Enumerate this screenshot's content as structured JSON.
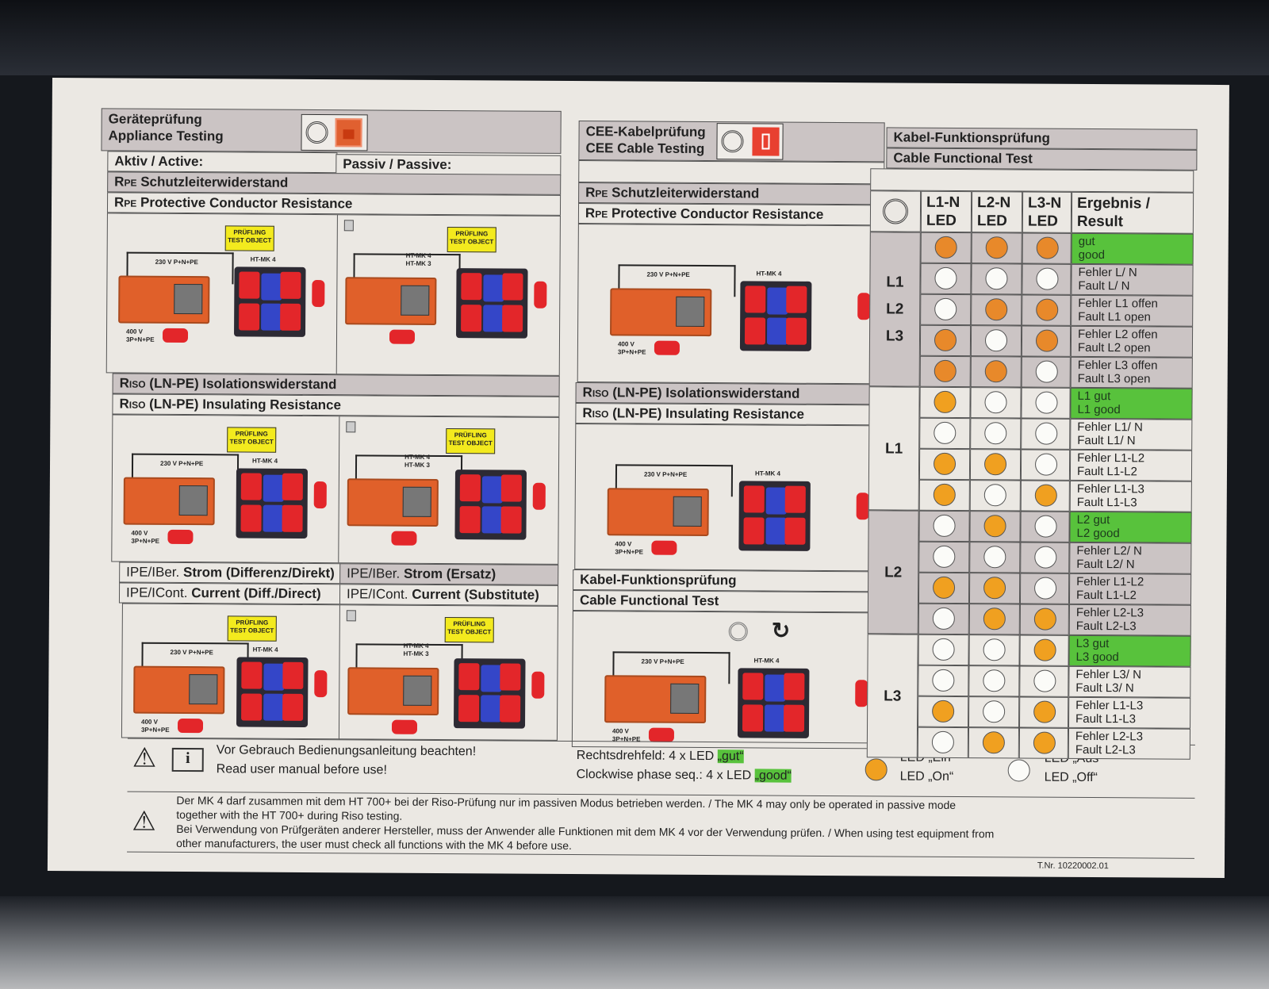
{
  "appliance": {
    "title_de": "Geräteprüfung",
    "title_en": "Appliance Testing",
    "active_label": "Aktiv / Active:",
    "passive_label": "Passiv / Passive:",
    "rpe_de": "Schutzleiterwiderstand",
    "rpe_en": "Protective Conductor Resistance",
    "rpe_prefix": "R",
    "rpe_sub": "PE",
    "riso_prefix": "R",
    "riso_sub": "ISO",
    "riso_de": "(LN-PE) Isolationswiderstand",
    "riso_en": "(LN-PE) Insulating Resistance",
    "ipe_de_active_prefix": "IPE/IBer.",
    "ipe_de_active": "Strom (Differenz/Direkt)",
    "ipe_en_active_prefix": "IPE/ICont.",
    "ipe_en_active": "Current (Diff./Direct)",
    "ipe_de_passive": "Strom (Ersatz)",
    "ipe_en_passive": "Current (Substitute)"
  },
  "cee": {
    "title_de": "CEE-Kabelprüfung",
    "title_en": "CEE Cable Testing",
    "rpe_de": "Schutzleiterwiderstand",
    "rpe_en": "Protective Conductor Resistance",
    "riso_de": "(LN-PE) Isolationswiderstand",
    "riso_en": "(LN-PE) Insulating Resistance",
    "cable_de": "Kabel-Funktionsprüfung",
    "cable_en": "Cable Functional Test"
  },
  "diagram_labels": {
    "supply_230": "230 V P+N+PE",
    "supply_400": "400 V",
    "supply_400b": "3P+N+PE",
    "mk4": "HT-MK 4",
    "mk4_mk3": "HT-MK 4\nHT-MK 3",
    "test_object_de": "PRÜFLING",
    "test_object_en": "TEST OBJECT"
  },
  "cable_test": {
    "title_de": "Kabel-Funktionsprüfung",
    "title_en": "Cable Functional Test",
    "headers": [
      "L1-N\nLED",
      "L2-N\nLED",
      "L3-N\nLED",
      "Ergebnis /\nResult"
    ],
    "groups": [
      {
        "label": "L1\n\nL2\n\nL3",
        "rows": 5,
        "shaded": true
      },
      {
        "label": "L1",
        "rows": 4,
        "shaded": false
      },
      {
        "label": "L2",
        "rows": 4,
        "shaded": true
      },
      {
        "label": "L3",
        "rows": 4,
        "shaded": false
      }
    ],
    "rows": [
      {
        "leds": [
          1,
          1,
          1
        ],
        "de": "gut",
        "en": "good",
        "good": true
      },
      {
        "leds": [
          0,
          0,
          0
        ],
        "de": "Fehler L/ N",
        "en": "Fault L/ N"
      },
      {
        "leds": [
          0,
          1,
          1
        ],
        "de": "Fehler L1 offen",
        "en": "Fault L1 open"
      },
      {
        "leds": [
          1,
          0,
          1
        ],
        "de": "Fehler L2 offen",
        "en": "Fault L2 open"
      },
      {
        "leds": [
          1,
          1,
          0
        ],
        "de": "Fehler L3 offen",
        "en": "Fault L3 open"
      },
      {
        "leds": [
          1,
          0,
          0
        ],
        "de": "L1 gut",
        "en": "L1 good",
        "good": true
      },
      {
        "leds": [
          0,
          0,
          0
        ],
        "de": "Fehler L1/ N",
        "en": "Fault L1/ N"
      },
      {
        "leds": [
          1,
          1,
          0
        ],
        "de": "Fehler L1-L2",
        "en": "Fault L1-L2"
      },
      {
        "leds": [
          1,
          0,
          1
        ],
        "de": "Fehler L1-L3",
        "en": "Fault L1-L3"
      },
      {
        "leds": [
          0,
          1,
          0
        ],
        "de": "L2 gut",
        "en": "L2 good",
        "good": true
      },
      {
        "leds": [
          0,
          0,
          0
        ],
        "de": "Fehler L2/ N",
        "en": "Fault L2/ N"
      },
      {
        "leds": [
          1,
          1,
          0
        ],
        "de": "Fehler L1-L2",
        "en": "Fault L1-L2"
      },
      {
        "leds": [
          0,
          1,
          1
        ],
        "de": "Fehler L2-L3",
        "en": "Fault L2-L3"
      },
      {
        "leds": [
          0,
          0,
          1
        ],
        "de": "L3 gut",
        "en": "L3 good",
        "good": true
      },
      {
        "leds": [
          0,
          0,
          0
        ],
        "de": "Fehler L3/ N",
        "en": "Fault L3/ N"
      },
      {
        "leds": [
          1,
          0,
          1
        ],
        "de": "Fehler L1-L3",
        "en": "Fault L1-L3"
      },
      {
        "leds": [
          0,
          1,
          1
        ],
        "de": "Fehler L2-L3",
        "en": "Fault L2-L3"
      }
    ]
  },
  "colors": {
    "led_on": "#f0a020",
    "led_phase_on": "#e8892a",
    "good": "#58c23c",
    "header_shade": "#cbc4c4"
  },
  "footer": {
    "manual_de": "Vor Gebrauch Bedienungsanleitung beachten!",
    "manual_en": "Read user manual before use!",
    "phase_de": "Rechtsdrehfeld: 4 x LED",
    "phase_de_hl": "„gut“",
    "phase_en": "Clockwise phase seq.: 4 x LED",
    "phase_en_hl": "„good“",
    "led_on_de": "LED „Ein“",
    "led_on_en": "LED „On“",
    "led_off_de": "LED „Aus“",
    "led_off_en": "LED „Off“",
    "warning_1": "Der MK 4 darf zusammen mit dem HT 700+ bei der Riso-Prüfung nur im passiven Modus betrieben werden. / The MK 4 may only be operated in passive mode",
    "warning_2": "together with the HT 700+ during Riso testing.",
    "warning_3": "Bei Verwendung von Prüfgeräten anderer Hersteller, muss der Anwender alle Funktionen mit dem MK 4 vor der Verwendung prüfen. / When using test equipment from",
    "warning_4": "other manufacturers, the user must check all functions with the MK 4 before use.",
    "part_number": "T.Nr. 10220002.01"
  }
}
